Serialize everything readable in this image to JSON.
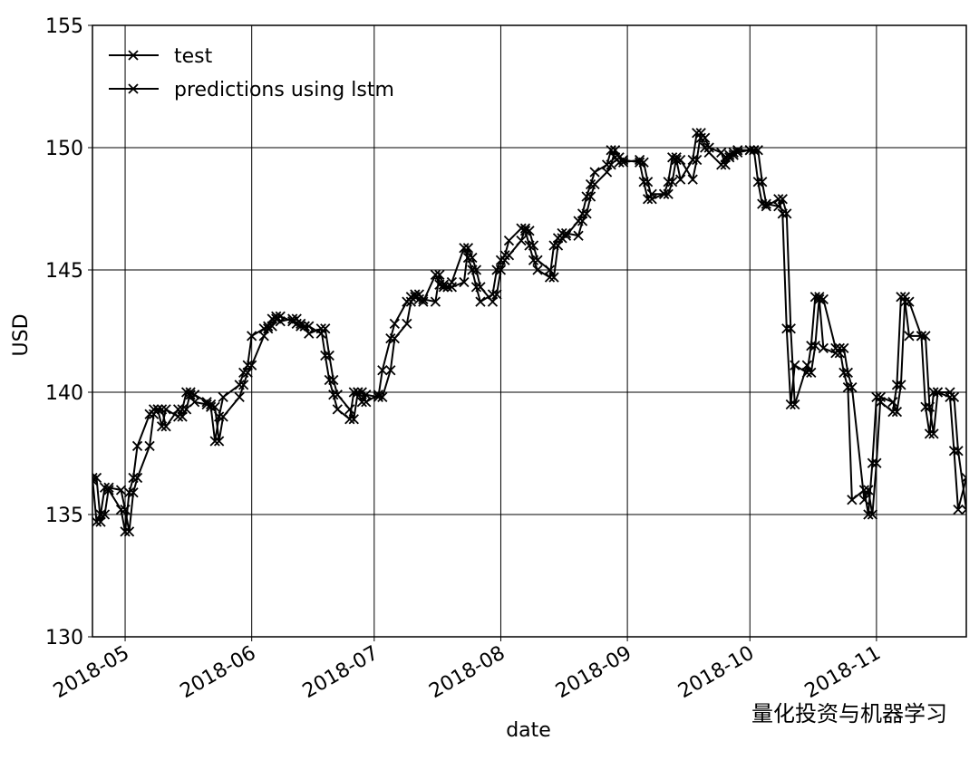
{
  "chart_data": {
    "type": "line",
    "x_label": "date",
    "y_label": "USD",
    "x": [
      113,
      114,
      115,
      116,
      117,
      120,
      121,
      122,
      123,
      124,
      127,
      128,
      129,
      130,
      131,
      134,
      135,
      136,
      137,
      138,
      141,
      142,
      143,
      144,
      145,
      149,
      150,
      151,
      152,
      155,
      156,
      157,
      158,
      159,
      162,
      163,
      164,
      165,
      166,
      169,
      170,
      171,
      172,
      173,
      176,
      177,
      178,
      179,
      180,
      183,
      184,
      186,
      187,
      190,
      191,
      192,
      193,
      194,
      197,
      198,
      199,
      200,
      201,
      204,
      205,
      206,
      207,
      208,
      211,
      212,
      213,
      214,
      215,
      218,
      219,
      220,
      221,
      222,
      225,
      226,
      227,
      228,
      229,
      232,
      233,
      234,
      235,
      236,
      239,
      240,
      241,
      242,
      243,
      247,
      248,
      249,
      250,
      253,
      254,
      255,
      256,
      257,
      260,
      261,
      262,
      263,
      264,
      267,
      268,
      269,
      270,
      271,
      274,
      275,
      276,
      277,
      278,
      281,
      282,
      283,
      284,
      285,
      288,
      289,
      290,
      291,
      292,
      295,
      296,
      297,
      298,
      299,
      302,
      303,
      304,
      305,
      306,
      309,
      310,
      311,
      312,
      313,
      316,
      317,
      318,
      319,
      320,
      323,
      324,
      325,
      327
    ],
    "series": [
      {
        "name": "test",
        "color": "#000000",
        "values": [
          136.5,
          134.7,
          135.0,
          136.1,
          136.0,
          135.2,
          134.3,
          135.9,
          136.5,
          137.8,
          139.1,
          139.3,
          139.3,
          138.6,
          139.3,
          139.0,
          139.3,
          140.0,
          139.9,
          139.6,
          139.5,
          139.4,
          138.0,
          139.0,
          139.8,
          140.3,
          140.8,
          141.1,
          142.3,
          142.6,
          142.7,
          143.0,
          143.1,
          142.9,
          143.0,
          142.8,
          142.7,
          142.7,
          142.4,
          142.6,
          141.5,
          140.5,
          139.9,
          139.3,
          138.9,
          140.0,
          140.0,
          139.6,
          139.9,
          139.8,
          140.9,
          142.2,
          142.8,
          143.7,
          143.9,
          144.0,
          143.8,
          143.7,
          144.8,
          144.4,
          144.3,
          144.3,
          144.5,
          145.9,
          145.5,
          145.0,
          144.3,
          143.7,
          144.0,
          145.0,
          145.4,
          145.6,
          146.2,
          146.7,
          146.6,
          146.0,
          145.4,
          145.0,
          144.7,
          146.0,
          146.3,
          146.5,
          146.4,
          147.0,
          147.3,
          148.0,
          148.5,
          149.0,
          149.3,
          149.9,
          149.6,
          149.4,
          149.5,
          149.4,
          148.6,
          147.9,
          148.1,
          148.1,
          148.6,
          149.6,
          149.5,
          148.7,
          149.5,
          150.6,
          150.4,
          150.0,
          149.8,
          149.3,
          149.6,
          149.7,
          149.8,
          149.9,
          149.9,
          149.9,
          148.6,
          147.7,
          147.6,
          147.9,
          147.3,
          142.6,
          139.5,
          141.1,
          140.8,
          141.9,
          143.9,
          143.8,
          141.8,
          141.6,
          141.8,
          140.8,
          140.2,
          135.6,
          136.0,
          135.0,
          137.1,
          139.8,
          139.6,
          139.2,
          140.3,
          143.9,
          143.7,
          142.3,
          142.3,
          139.4,
          138.3,
          140.0,
          140.0,
          139.8,
          137.6,
          135.2,
          136.5
        ]
      },
      {
        "name": "predictions using lstm",
        "color": "#000000",
        "values": [
          136.4,
          136.5,
          134.7,
          135.0,
          136.1,
          136.0,
          135.2,
          134.3,
          135.9,
          136.5,
          137.8,
          139.1,
          139.3,
          139.3,
          138.6,
          139.3,
          139.0,
          139.3,
          140.0,
          139.9,
          139.6,
          139.5,
          139.4,
          138.0,
          139.0,
          139.8,
          140.3,
          140.8,
          141.1,
          142.3,
          142.6,
          142.7,
          143.0,
          143.1,
          142.9,
          143.0,
          142.8,
          142.7,
          142.7,
          142.4,
          142.6,
          141.5,
          140.5,
          139.9,
          139.3,
          138.9,
          140.0,
          140.0,
          139.6,
          139.9,
          139.8,
          140.9,
          142.2,
          142.8,
          143.7,
          143.9,
          144.0,
          143.8,
          143.7,
          144.8,
          144.4,
          144.3,
          144.3,
          144.5,
          145.9,
          145.5,
          145.0,
          144.3,
          143.7,
          144.0,
          145.0,
          145.4,
          145.6,
          146.2,
          146.7,
          146.6,
          146.0,
          145.4,
          145.0,
          144.7,
          146.0,
          146.3,
          146.5,
          146.4,
          147.0,
          147.3,
          148.0,
          148.5,
          149.0,
          149.3,
          149.9,
          149.6,
          149.4,
          149.5,
          149.4,
          148.6,
          147.9,
          148.1,
          148.1,
          148.6,
          149.6,
          149.5,
          148.7,
          149.5,
          150.6,
          150.4,
          150.0,
          149.8,
          149.3,
          149.6,
          149.7,
          149.8,
          149.9,
          149.9,
          149.9,
          148.6,
          147.7,
          147.6,
          147.9,
          147.3,
          142.6,
          139.5,
          141.1,
          140.8,
          141.9,
          143.9,
          143.8,
          141.8,
          141.6,
          141.8,
          140.8,
          140.2,
          135.6,
          136.0,
          135.0,
          137.1,
          139.8,
          139.6,
          139.2,
          140.3,
          143.9,
          143.7,
          142.3,
          142.3,
          139.4,
          138.3,
          140.0,
          140.0,
          139.8,
          137.6,
          135.2
        ]
      }
    ],
    "xlim": [
      113,
      327
    ],
    "xticks": [
      {
        "value": 121,
        "label": "2018-05"
      },
      {
        "value": 152,
        "label": "2018-06"
      },
      {
        "value": 182,
        "label": "2018-07"
      },
      {
        "value": 213,
        "label": "2018-08"
      },
      {
        "value": 244,
        "label": "2018-09"
      },
      {
        "value": 274,
        "label": "2018-10"
      },
      {
        "value": 305,
        "label": "2018-11"
      }
    ],
    "ylim": [
      130,
      155
    ],
    "yticks": [
      130,
      135,
      140,
      145,
      150,
      155
    ],
    "grid": true,
    "legend": "upper left",
    "watermark": "量化投资与机器学习"
  }
}
